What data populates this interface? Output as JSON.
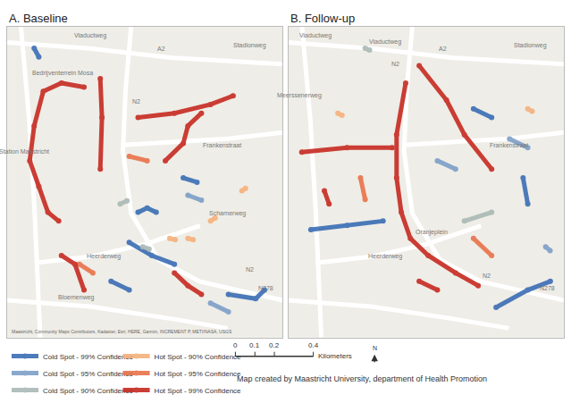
{
  "chart_data": [
    {
      "type": "scatter",
      "title": "A. Baseline",
      "xlim": [
        0,
        100
      ],
      "ylim": [
        0,
        100
      ],
      "xticks": [],
      "yticks": [],
      "tick_labels": false,
      "grid": false,
      "legend": "bottom left",
      "attribution": "Maastricht, Community Maps Contributors, Kadaster, Esri, HERE, Garmin, INCREMENT P, METI/NASA, USGS",
      "roads": [
        {
          "x": [
            0,
            30,
            60,
            100
          ],
          "y": [
            95,
            93,
            90,
            88
          ]
        },
        {
          "x": [
            45,
            43,
            42,
            45,
            55,
            70,
            85,
            100
          ],
          "y": [
            100,
            80,
            60,
            40,
            25,
            18,
            15,
            12
          ]
        },
        {
          "x": [
            5,
            8,
            10,
            12
          ],
          "y": [
            100,
            70,
            40,
            0
          ]
        },
        {
          "x": [
            0,
            30,
            60,
            80
          ],
          "y": [
            12,
            10,
            6,
            3
          ]
        },
        {
          "x": [
            42,
            60,
            80,
            100
          ],
          "y": [
            62,
            63,
            64,
            66
          ]
        },
        {
          "x": [
            10,
            30,
            50,
            70
          ],
          "y": [
            24,
            26,
            30,
            36
          ]
        }
      ],
      "labels": [
        {
          "text": "Viaductweg",
          "x": 30,
          "y": 97
        },
        {
          "text": "A2",
          "x": 56,
          "y": 93
        },
        {
          "text": "Stadionweg",
          "x": 88,
          "y": 94
        },
        {
          "text": "Bedrijventerrein Mosa",
          "x": 20,
          "y": 85
        },
        {
          "text": "N2",
          "x": 47,
          "y": 76
        },
        {
          "text": "Frankenstraat",
          "x": 78,
          "y": 62
        },
        {
          "text": "Station Maastricht",
          "x": 6,
          "y": 60
        },
        {
          "text": "Scharnerweg",
          "x": 80,
          "y": 40
        },
        {
          "text": "Heerderweg",
          "x": 35,
          "y": 26
        },
        {
          "text": "Bloemenweg",
          "x": 25,
          "y": 13
        },
        {
          "text": "N278",
          "x": 94,
          "y": 16
        },
        {
          "text": "N2",
          "x": 88,
          "y": 22
        }
      ],
      "series": [
        {
          "name": "Cold Spot - 99% Confidence",
          "color": "#3a6db5",
          "x": [
            47.5,
            50.8,
            54.1,
            null,
            44.3,
            52.5,
            60.7,
            null,
            37.7,
            44.3,
            null,
            80.3,
            90.2,
            93.4,
            null,
            9.8,
            11.5,
            null,
            63.9,
            68.9
          ],
          "y": [
            40.3,
            41.7,
            40.3,
            null,
            30.6,
            26.4,
            23.6,
            null,
            18.1,
            15.3,
            null,
            13.9,
            12.5,
            15.3,
            null,
            93.1,
            90.3,
            null,
            51.4,
            50
          ]
        },
        {
          "name": "Cold Spot - 95% Confidence",
          "color": "#7d9fc8",
          "x": [
            73.8,
            80.3,
            null,
            65.6,
            70.5
          ],
          "y": [
            11.1,
            8.3,
            null,
            45.8,
            44.2
          ]
        },
        {
          "name": "Cold Spot - 90% Confidence",
          "color": "#aab9b6",
          "x": [
            41,
            43.5,
            null,
            49.2,
            51.5
          ],
          "y": [
            43,
            44,
            null,
            29.2,
            28.5
          ]
        },
        {
          "name": "Hot Spot - 90% Confidence",
          "color": "#f5b17c",
          "x": [
            59,
            61,
            null,
            65.6,
            67.5,
            null,
            73.8,
            75.5,
            null,
            85.2,
            86.5
          ],
          "y": [
            31.9,
            31.5,
            null,
            31.9,
            31.5,
            null,
            37.5,
            38.5,
            null,
            47.2,
            48
          ]
        },
        {
          "name": "Hot Spot - 95% Confidence",
          "color": "#e8734a",
          "x": [
            44.3,
            50.8,
            null,
            26.2,
            31.1
          ],
          "y": [
            58.3,
            56.9,
            null,
            23.6,
            20.8
          ]
        },
        {
          "name": "Hot Spot - 99% Confidence",
          "color": "#c62a21",
          "x": [
            27.9,
            19.7,
            13.1,
            9.8,
            8.2,
            11.5,
            14.8,
            18.7,
            null,
            33.8,
            34.4,
            33.8,
            null,
            47.5,
            60.7,
            73.8,
            82,
            null,
            57.4,
            63.9,
            65.6,
            70.5,
            null,
            19.7,
            24.6,
            27.9,
            null,
            60.7,
            65.6,
            70.5
          ],
          "y": [
            80.6,
            81.9,
            79.2,
            68.1,
            56.9,
            48.6,
            40.3,
            37.5,
            null,
            83.3,
            70.8,
            54.2,
            null,
            70.8,
            72.2,
            75,
            77.8,
            null,
            56.9,
            62.5,
            68.1,
            72.2,
            null,
            26.4,
            23.6,
            15.3,
            null,
            20.8,
            16.7,
            13.9
          ]
        }
      ]
    },
    {
      "type": "scatter",
      "title": "B. Follow-up",
      "xlim": [
        0,
        100
      ],
      "ylim": [
        0,
        100
      ],
      "xticks": [],
      "yticks": [],
      "tick_labels": false,
      "grid": false,
      "roads": [
        {
          "x": [
            0,
            30,
            60,
            100
          ],
          "y": [
            95,
            93,
            90,
            88
          ]
        },
        {
          "x": [
            45,
            43,
            42,
            45,
            55,
            70,
            85,
            100
          ],
          "y": [
            100,
            80,
            60,
            40,
            25,
            18,
            15,
            12
          ]
        },
        {
          "x": [
            5,
            8,
            10,
            12
          ],
          "y": [
            100,
            70,
            40,
            0
          ]
        },
        {
          "x": [
            0,
            30,
            60,
            80
          ],
          "y": [
            12,
            10,
            6,
            3
          ]
        },
        {
          "x": [
            42,
            60,
            80,
            100
          ],
          "y": [
            62,
            63,
            64,
            66
          ]
        },
        {
          "x": [
            10,
            30,
            50,
            70
          ],
          "y": [
            24,
            26,
            30,
            36
          ]
        }
      ],
      "labels": [
        {
          "text": "Viaductweg",
          "x": 10,
          "y": 97
        },
        {
          "text": "Viaductweg",
          "x": 35,
          "y": 95
        },
        {
          "text": "A2",
          "x": 56,
          "y": 93
        },
        {
          "text": "Stadionweg",
          "x": 88,
          "y": 94
        },
        {
          "text": "Meerssenerweg",
          "x": 4,
          "y": 78
        },
        {
          "text": "N2",
          "x": 39,
          "y": 88
        },
        {
          "text": "Frankenstraat",
          "x": 80,
          "y": 62
        },
        {
          "text": "Oranjeplein",
          "x": 52,
          "y": 34
        },
        {
          "text": "Heerderweg",
          "x": 35,
          "y": 26
        },
        {
          "text": "N2",
          "x": 72,
          "y": 20
        },
        {
          "text": "N278",
          "x": 94,
          "y": 16
        }
      ],
      "series": [
        {
          "name": "Cold Spot - 99% Confidence",
          "color": "#3a6db5",
          "x": [
            85.2,
            86.9,
            null,
            8.2,
            21.3,
            34.4,
            null,
            75.4,
            86.9,
            95.1,
            null,
            67.2,
            73.8
          ],
          "y": [
            51.4,
            43,
            null,
            34.7,
            36.1,
            37.5,
            null,
            9.7,
            15.3,
            18.1,
            null,
            73.6,
            70.8
          ]
        },
        {
          "name": "Cold Spot - 95% Confidence",
          "color": "#7d9fc8",
          "x": [
            80.3,
            86.9,
            null,
            54.1,
            60.7,
            null,
            93.4,
            95
          ],
          "y": [
            63.9,
            61.1,
            null,
            56.9,
            54.2,
            null,
            29.2,
            28
          ]
        },
        {
          "name": "Cold Spot - 90% Confidence",
          "color": "#aab9b6",
          "x": [
            63.9,
            73.8,
            null,
            27.9,
            29.5
          ],
          "y": [
            37.5,
            40.3,
            null,
            93.1,
            92.5
          ]
        },
        {
          "name": "Hot Spot - 90% Confidence",
          "color": "#f5b17c",
          "x": [
            18,
            19.5,
            null,
            86.9,
            88.5
          ],
          "y": [
            72.2,
            71.5,
            null,
            73.6,
            72.8
          ]
        },
        {
          "name": "Hot Spot - 95% Confidence",
          "color": "#e8734a",
          "x": [
            26.2,
            27.9,
            null,
            67.2,
            73.8
          ],
          "y": [
            51.4,
            44.4,
            null,
            31.9,
            26.4
          ]
        },
        {
          "name": "Hot Spot - 99% Confidence",
          "color": "#c62a21",
          "x": [
            42.6,
            39.3,
            39.3,
            41,
            44.3,
            50.8,
            60.7,
            68.9,
            null,
            47.5,
            57.4,
            63.9,
            73.8,
            null,
            4.9,
            21.3,
            37.7,
            null,
            13.1,
            14.8,
            null,
            47.5,
            54.1
          ],
          "y": [
            81.9,
            65.3,
            51.4,
            40.3,
            31.9,
            26.4,
            20.8,
            16.7,
            null,
            87.5,
            76.4,
            65.3,
            54.2,
            null,
            59.7,
            61.1,
            61.1,
            null,
            47.2,
            43,
            null,
            18.1,
            15.3
          ]
        }
      ]
    }
  ],
  "scale_bar": {
    "ticks": [
      0,
      0.1,
      0.2,
      0.4
    ],
    "unit": "Kilometers"
  },
  "north": "N",
  "credit": "Map created by Maastricht University, department of Health Promotion"
}
